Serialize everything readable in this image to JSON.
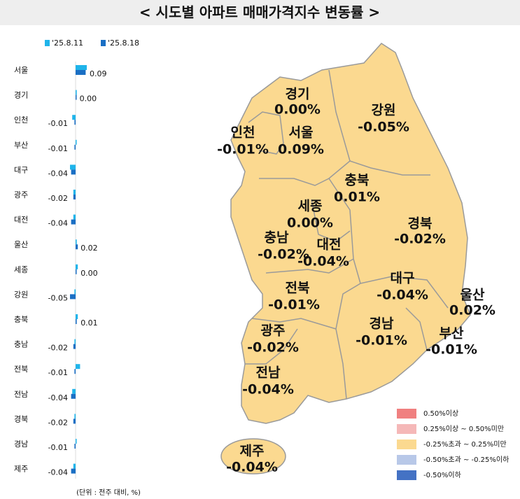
{
  "title": "< 시도별 아파트 매매가격지수 변동률 >",
  "chart_data": {
    "type": "bar",
    "orientation": "horizontal",
    "categories": [
      "서울",
      "경기",
      "인천",
      "부산",
      "대구",
      "광주",
      "대전",
      "울산",
      "세종",
      "강원",
      "충북",
      "충남",
      "전북",
      "전남",
      "경북",
      "경남",
      "제주"
    ],
    "series": [
      {
        "name": "'25.8.11",
        "color": "#1fb4ea",
        "values": [
          0.1,
          0.01,
          -0.03,
          0.0,
          -0.05,
          -0.02,
          -0.02,
          0.01,
          0.02,
          -0.01,
          0.02,
          -0.01,
          0.04,
          -0.03,
          -0.01,
          0.0,
          -0.02
        ]
      },
      {
        "name": "'25.8.18",
        "color": "#1a6fc4",
        "values": [
          0.09,
          0.0,
          -0.01,
          -0.01,
          -0.04,
          -0.02,
          -0.04,
          0.02,
          0.0,
          -0.05,
          0.01,
          -0.02,
          -0.01,
          -0.04,
          -0.02,
          -0.01,
          -0.04
        ],
        "value_labels": [
          "0.09",
          "0.00",
          "-0.01",
          "-0.01",
          "-0.04",
          "-0.02",
          "-0.04",
          "0.02",
          "0.00",
          "-0.05",
          "0.01",
          "-0.02",
          "-0.01",
          "-0.04",
          "-0.02",
          "-0.01",
          "-0.04"
        ]
      }
    ],
    "note": "(단위 : 전주 대비, %)"
  },
  "map": {
    "regions": [
      {
        "name": "경기",
        "value": "0.00%"
      },
      {
        "name": "강원",
        "value": "-0.05%"
      },
      {
        "name": "인천",
        "value": "-0.01%"
      },
      {
        "name": "서울",
        "value": "0.09%"
      },
      {
        "name": "충북",
        "value": "0.01%"
      },
      {
        "name": "세종",
        "value": "0.00%"
      },
      {
        "name": "경북",
        "value": "-0.02%"
      },
      {
        "name": "충남",
        "value": "-0.02%"
      },
      {
        "name": "대전",
        "value": "-0.04%"
      },
      {
        "name": "전북",
        "value": "-0.01%"
      },
      {
        "name": "대구",
        "value": "-0.04%"
      },
      {
        "name": "울산",
        "value": "0.02%"
      },
      {
        "name": "경남",
        "value": "-0.01%"
      },
      {
        "name": "부산",
        "value": "-0.01%"
      },
      {
        "name": "광주",
        "value": "-0.02%"
      },
      {
        "name": "전남",
        "value": "-0.04%"
      },
      {
        "name": "제주",
        "value": "-0.04%"
      }
    ],
    "legend": [
      {
        "label": "0.50%이상",
        "color": "#f08080"
      },
      {
        "label": "0.25%이상 ~ 0.50%미만",
        "color": "#f5b8b8"
      },
      {
        "label": "-0.25%초과 ~ 0.25%미만",
        "color": "#fbd990"
      },
      {
        "label": "-0.50%초과 ~ -0.25%이하",
        "color": "#b8c8e8"
      },
      {
        "label": "-0.50%이하",
        "color": "#4472c4"
      }
    ]
  }
}
